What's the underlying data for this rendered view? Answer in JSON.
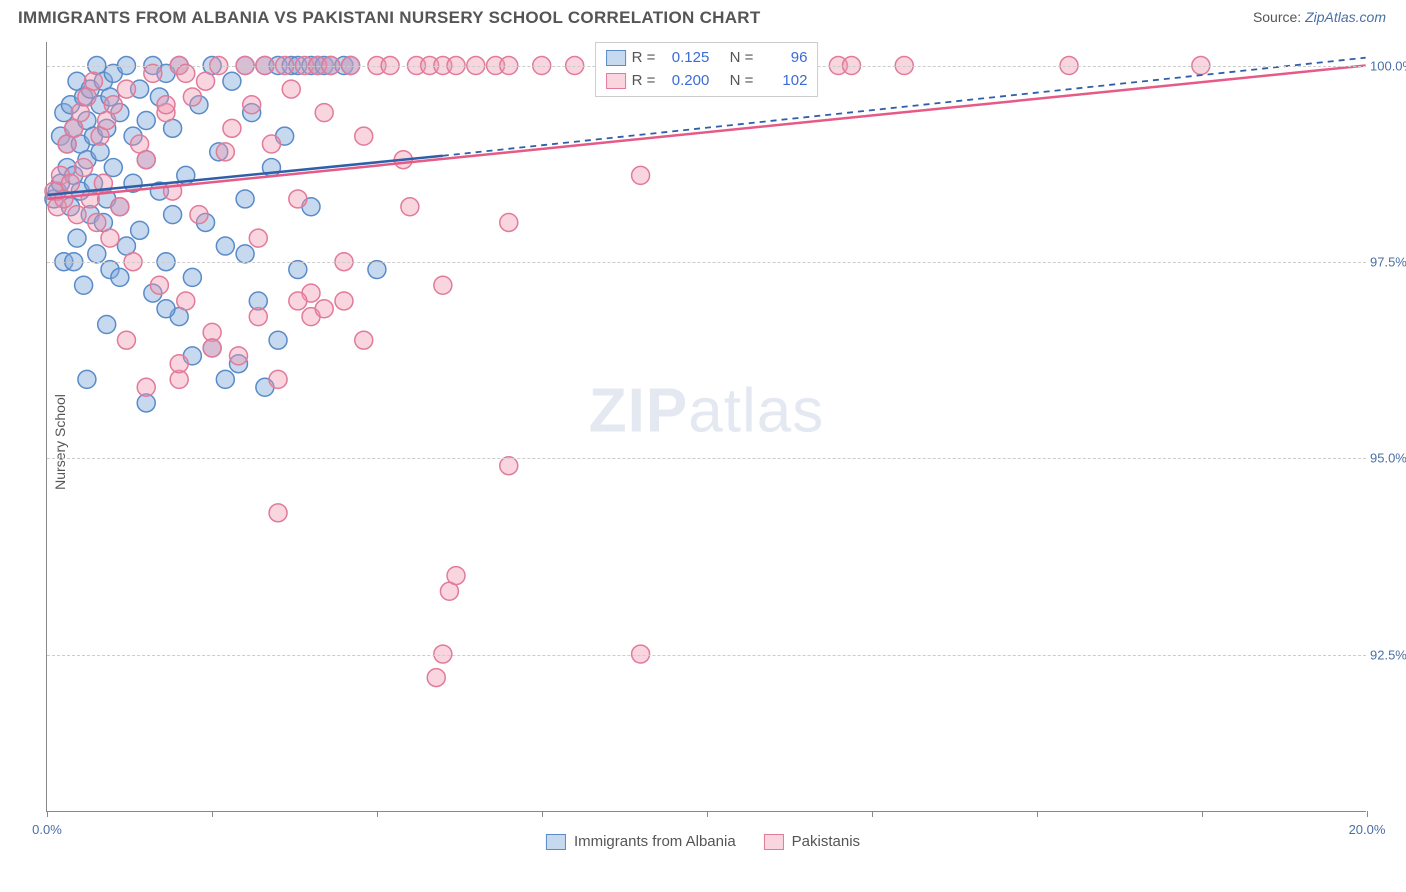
{
  "header": {
    "title": "IMMIGRANTS FROM ALBANIA VS PAKISTANI NURSERY SCHOOL CORRELATION CHART",
    "source_prefix": "Source: ",
    "source": "ZipAtlas.com"
  },
  "watermark": {
    "zip": "ZIP",
    "atlas": "atlas"
  },
  "chart": {
    "type": "scatter",
    "ylabel": "Nursery School",
    "xlim": [
      0.0,
      20.0
    ],
    "ylim": [
      90.5,
      100.3
    ],
    "background_color": "#ffffff",
    "grid_color": "#cccccc",
    "axis_color": "#888888",
    "label_color": "#4a6fa5",
    "marker_radius": 9,
    "marker_stroke_width": 1.5,
    "y_gridlines": [
      92.5,
      95.0,
      97.5,
      100.0
    ],
    "y_tick_labels": [
      "92.5%",
      "95.0%",
      "97.5%",
      "100.0%"
    ],
    "x_ticks": [
      0.0,
      2.5,
      5.0,
      7.5,
      10.0,
      12.5,
      15.0,
      17.5,
      20.0
    ],
    "x_tick_labels": {
      "0": "0.0%",
      "8": "20.0%"
    },
    "series": [
      {
        "key": "albania",
        "label": "Immigrants from Albania",
        "fill": "rgba(130,170,220,0.45)",
        "stroke": "#5a8bc9",
        "line_color": "#2e5fa8",
        "trend_solid": {
          "x1": 0.0,
          "y1": 98.35,
          "x2": 6.0,
          "y2": 98.85
        },
        "trend_dashed": {
          "x1": 6.0,
          "y1": 98.85,
          "x2": 20.0,
          "y2": 100.1
        },
        "R": "0.125",
        "N": "96",
        "points": [
          [
            0.1,
            98.3
          ],
          [
            0.15,
            98.4
          ],
          [
            0.2,
            98.5
          ],
          [
            0.2,
            99.1
          ],
          [
            0.25,
            97.5
          ],
          [
            0.25,
            99.4
          ],
          [
            0.3,
            98.7
          ],
          [
            0.3,
            99.0
          ],
          [
            0.35,
            98.2
          ],
          [
            0.35,
            99.5
          ],
          [
            0.4,
            98.6
          ],
          [
            0.4,
            99.2
          ],
          [
            0.45,
            97.8
          ],
          [
            0.45,
            99.8
          ],
          [
            0.5,
            98.4
          ],
          [
            0.5,
            99.0
          ],
          [
            0.55,
            97.2
          ],
          [
            0.55,
            99.6
          ],
          [
            0.6,
            98.8
          ],
          [
            0.6,
            99.3
          ],
          [
            0.65,
            98.1
          ],
          [
            0.65,
            99.7
          ],
          [
            0.7,
            98.5
          ],
          [
            0.7,
            99.1
          ],
          [
            0.75,
            97.6
          ],
          [
            0.75,
            100.0
          ],
          [
            0.8,
            98.9
          ],
          [
            0.8,
            99.5
          ],
          [
            0.85,
            98.0
          ],
          [
            0.85,
            99.8
          ],
          [
            0.9,
            98.3
          ],
          [
            0.9,
            99.2
          ],
          [
            0.95,
            97.4
          ],
          [
            0.95,
            99.6
          ],
          [
            1.0,
            98.7
          ],
          [
            1.0,
            99.9
          ],
          [
            1.1,
            98.2
          ],
          [
            1.1,
            99.4
          ],
          [
            1.2,
            97.7
          ],
          [
            1.2,
            100.0
          ],
          [
            1.3,
            98.5
          ],
          [
            1.3,
            99.1
          ],
          [
            1.4,
            97.9
          ],
          [
            1.4,
            99.7
          ],
          [
            1.5,
            98.8
          ],
          [
            1.5,
            99.3
          ],
          [
            1.6,
            97.1
          ],
          [
            1.6,
            100.0
          ],
          [
            1.7,
            98.4
          ],
          [
            1.7,
            99.6
          ],
          [
            1.8,
            97.5
          ],
          [
            1.8,
            99.9
          ],
          [
            1.9,
            98.1
          ],
          [
            1.9,
            99.2
          ],
          [
            2.0,
            96.8
          ],
          [
            2.0,
            100.0
          ],
          [
            2.1,
            98.6
          ],
          [
            2.2,
            97.3
          ],
          [
            2.3,
            99.5
          ],
          [
            2.4,
            98.0
          ],
          [
            2.5,
            96.4
          ],
          [
            2.5,
            100.0
          ],
          [
            2.6,
            98.9
          ],
          [
            2.7,
            97.7
          ],
          [
            2.8,
            99.8
          ],
          [
            2.9,
            96.2
          ],
          [
            3.0,
            100.0
          ],
          [
            3.0,
            98.3
          ],
          [
            3.1,
            99.4
          ],
          [
            3.2,
            97.0
          ],
          [
            3.3,
            100.0
          ],
          [
            3.4,
            98.7
          ],
          [
            3.5,
            96.5
          ],
          [
            3.5,
            100.0
          ],
          [
            3.6,
            99.1
          ],
          [
            3.7,
            100.0
          ],
          [
            3.8,
            97.4
          ],
          [
            3.8,
            100.0
          ],
          [
            4.0,
            100.0
          ],
          [
            4.0,
            98.2
          ],
          [
            4.1,
            100.0
          ],
          [
            4.2,
            100.0
          ],
          [
            4.3,
            100.0
          ],
          [
            4.5,
            100.0
          ],
          [
            4.6,
            100.0
          ],
          [
            5.0,
            97.4
          ],
          [
            1.5,
            95.7
          ],
          [
            1.1,
            97.3
          ],
          [
            2.7,
            96.0
          ],
          [
            0.4,
            97.5
          ],
          [
            3.3,
            95.9
          ],
          [
            0.9,
            96.7
          ],
          [
            2.2,
            96.3
          ],
          [
            1.8,
            96.9
          ],
          [
            3.0,
            97.6
          ],
          [
            0.6,
            96.0
          ]
        ]
      },
      {
        "key": "pakistani",
        "label": "Pakistanis",
        "fill": "rgba(240,150,175,0.40)",
        "stroke": "#e27a99",
        "line_color": "#e65a85",
        "trend_solid": {
          "x1": 0.0,
          "y1": 98.3,
          "x2": 20.0,
          "y2": 100.0
        },
        "trend_dashed": null,
        "R": "0.200",
        "N": "102",
        "points": [
          [
            0.1,
            98.4
          ],
          [
            0.15,
            98.2
          ],
          [
            0.2,
            98.6
          ],
          [
            0.25,
            98.3
          ],
          [
            0.3,
            99.0
          ],
          [
            0.35,
            98.5
          ],
          [
            0.4,
            99.2
          ],
          [
            0.45,
            98.1
          ],
          [
            0.5,
            99.4
          ],
          [
            0.55,
            98.7
          ],
          [
            0.6,
            99.6
          ],
          [
            0.65,
            98.3
          ],
          [
            0.7,
            99.8
          ],
          [
            0.75,
            98.0
          ],
          [
            0.8,
            99.1
          ],
          [
            0.85,
            98.5
          ],
          [
            0.9,
            99.3
          ],
          [
            0.95,
            97.8
          ],
          [
            1.0,
            99.5
          ],
          [
            1.1,
            98.2
          ],
          [
            1.2,
            99.7
          ],
          [
            1.3,
            97.5
          ],
          [
            1.4,
            99.0
          ],
          [
            1.5,
            98.8
          ],
          [
            1.6,
            99.9
          ],
          [
            1.7,
            97.2
          ],
          [
            1.8,
            99.4
          ],
          [
            1.9,
            98.4
          ],
          [
            2.0,
            100.0
          ],
          [
            2.1,
            97.0
          ],
          [
            2.2,
            99.6
          ],
          [
            2.3,
            98.1
          ],
          [
            2.4,
            99.8
          ],
          [
            2.5,
            96.6
          ],
          [
            2.6,
            100.0
          ],
          [
            2.7,
            98.9
          ],
          [
            2.8,
            99.2
          ],
          [
            2.9,
            96.3
          ],
          [
            3.0,
            100.0
          ],
          [
            3.1,
            99.5
          ],
          [
            3.2,
            97.8
          ],
          [
            3.3,
            100.0
          ],
          [
            3.4,
            99.0
          ],
          [
            3.5,
            96.0
          ],
          [
            3.6,
            100.0
          ],
          [
            3.7,
            99.7
          ],
          [
            3.8,
            98.3
          ],
          [
            3.9,
            100.0
          ],
          [
            4.0,
            96.8
          ],
          [
            4.1,
            100.0
          ],
          [
            4.2,
            99.4
          ],
          [
            4.3,
            100.0
          ],
          [
            4.5,
            97.5
          ],
          [
            4.6,
            100.0
          ],
          [
            4.8,
            99.1
          ],
          [
            5.0,
            100.0
          ],
          [
            5.2,
            100.0
          ],
          [
            5.4,
            98.8
          ],
          [
            5.6,
            100.0
          ],
          [
            5.8,
            100.0
          ],
          [
            6.0,
            97.2
          ],
          [
            6.0,
            100.0
          ],
          [
            6.2,
            100.0
          ],
          [
            6.5,
            100.0
          ],
          [
            6.8,
            100.0
          ],
          [
            7.0,
            98.0
          ],
          [
            7.0,
            100.0
          ],
          [
            7.5,
            100.0
          ],
          [
            8.0,
            100.0
          ],
          [
            8.5,
            100.0
          ],
          [
            9.0,
            98.6
          ],
          [
            9.5,
            100.0
          ],
          [
            10.0,
            100.0
          ],
          [
            10.5,
            100.0
          ],
          [
            11.0,
            100.0
          ],
          [
            11.5,
            100.0
          ],
          [
            12.0,
            100.0
          ],
          [
            12.2,
            100.0
          ],
          [
            13.0,
            100.0
          ],
          [
            15.5,
            100.0
          ],
          [
            17.5,
            100.0
          ],
          [
            3.5,
            94.3
          ],
          [
            4.2,
            96.9
          ],
          [
            2.5,
            96.4
          ],
          [
            1.8,
            99.5
          ],
          [
            4.0,
            97.1
          ],
          [
            2.0,
            96.0
          ],
          [
            3.8,
            97.0
          ],
          [
            1.2,
            96.5
          ],
          [
            6.1,
            93.3
          ],
          [
            6.0,
            92.5
          ],
          [
            5.9,
            92.2
          ],
          [
            6.2,
            93.5
          ],
          [
            9.0,
            92.5
          ],
          [
            4.5,
            97.0
          ],
          [
            2.0,
            96.2
          ],
          [
            3.2,
            96.8
          ],
          [
            1.5,
            95.9
          ],
          [
            4.8,
            96.5
          ],
          [
            7.0,
            94.9
          ],
          [
            5.5,
            98.2
          ],
          [
            2.1,
            99.9
          ]
        ]
      }
    ],
    "legend_top": {
      "R_label": "R =",
      "N_label": "N ="
    }
  }
}
